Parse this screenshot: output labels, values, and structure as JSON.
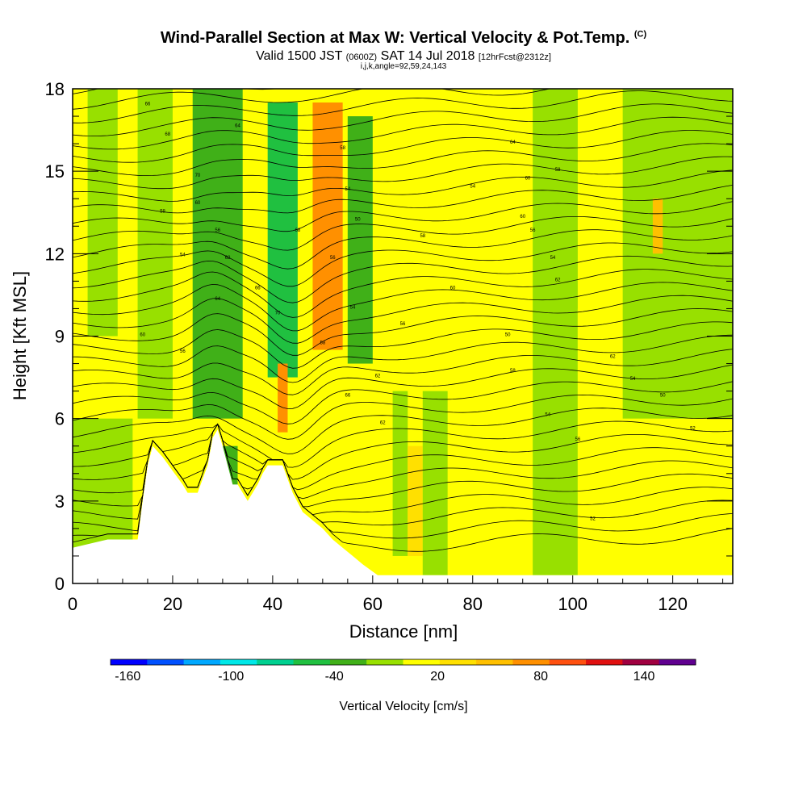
{
  "header": {
    "title": "Wind-Parallel Section at Max W: Vertical Velocity & Pot.Temp.",
    "title_mark": "(C)",
    "valid_main": "Valid 1500 JST",
    "valid_utc": "(0600Z)",
    "valid_date": "SAT 14 Jul 2018",
    "forecast": "[12hrFcst@2312z]",
    "grid_info": "i,j,k,angle=92,59,24,143"
  },
  "chart_data": {
    "type": "heatmap",
    "xlabel": "Distance [nm]",
    "ylabel": "Height [Kft MSL]",
    "xlim": [
      0,
      132
    ],
    "ylim": [
      0,
      18
    ],
    "x_ticks": [
      "0",
      "20",
      "40",
      "60",
      "80",
      "100",
      "120"
    ],
    "y_ticks": [
      "0",
      "3",
      "6",
      "9",
      "12",
      "15",
      "18"
    ],
    "colorbar": {
      "label": "Vertical Velocity [cm/s]",
      "tick_labels": [
        "-160",
        "-100",
        "-40",
        "20",
        "80",
        "140"
      ],
      "range": [
        -170,
        170
      ],
      "colors": [
        "#0000ff",
        "#0050ff",
        "#00a8ff",
        "#00e8e8",
        "#00d090",
        "#20c040",
        "#40b018",
        "#98e000",
        "#ffff00",
        "#ffe000",
        "#ffc000",
        "#ff9000",
        "#ff5010",
        "#e01010",
        "#a00040",
        "#600090"
      ]
    },
    "terrain_profile": [
      [
        0,
        1.3
      ],
      [
        7,
        1.6
      ],
      [
        13,
        1.6
      ],
      [
        13.5,
        2.3
      ],
      [
        14,
        3
      ],
      [
        15,
        4.3
      ],
      [
        16,
        5
      ],
      [
        18,
        4.6
      ],
      [
        20,
        4.1
      ],
      [
        22,
        3.6
      ],
      [
        23,
        3.3
      ],
      [
        25,
        3.3
      ],
      [
        27,
        4.3
      ],
      [
        28,
        5.3
      ],
      [
        29,
        5.6
      ],
      [
        30,
        5
      ],
      [
        31,
        4.3
      ],
      [
        32,
        3.6
      ],
      [
        33,
        3.6
      ],
      [
        35,
        3
      ],
      [
        36,
        3.3
      ],
      [
        37,
        3.6
      ],
      [
        38,
        4
      ],
      [
        39,
        4.3
      ],
      [
        42,
        4.3
      ],
      [
        44,
        3.3
      ],
      [
        46,
        2.6
      ],
      [
        48,
        2.3
      ],
      [
        50,
        2
      ],
      [
        52,
        1.6
      ],
      [
        54,
        1.3
      ],
      [
        56,
        1
      ],
      [
        58,
        0.7
      ],
      [
        61,
        0.3
      ],
      [
        62,
        0.3
      ],
      [
        132,
        0.3
      ]
    ],
    "velocity_zones": [
      {
        "x": [
          0,
          132
        ],
        "y": [
          0,
          18
        ],
        "value": 5
      },
      {
        "x": [
          0,
          12
        ],
        "y": [
          0.3,
          6
        ],
        "value": -15
      },
      {
        "x": [
          3,
          9
        ],
        "y": [
          9,
          18
        ],
        "value": -15
      },
      {
        "x": [
          13,
          20
        ],
        "y": [
          6,
          18
        ],
        "value": -15
      },
      {
        "x": [
          24,
          34
        ],
        "y": [
          6,
          18
        ],
        "value": -25
      },
      {
        "x": [
          39,
          45
        ],
        "y": [
          7.5,
          17.5
        ],
        "value": -45
      },
      {
        "x": [
          48,
          54
        ],
        "y": [
          8.5,
          17.5
        ],
        "value": 65
      },
      {
        "x": [
          55,
          60
        ],
        "y": [
          8,
          17
        ],
        "value": -35
      },
      {
        "x": [
          41,
          43
        ],
        "y": [
          5.5,
          8
        ],
        "value": 70
      },
      {
        "x": [
          30,
          33
        ],
        "y": [
          3.5,
          5
        ],
        "value": -40
      },
      {
        "x": [
          64,
          67
        ],
        "y": [
          1,
          7
        ],
        "value": -20
      },
      {
        "x": [
          67,
          70
        ],
        "y": [
          1,
          5
        ],
        "value": 40
      },
      {
        "x": [
          70,
          75
        ],
        "y": [
          0.3,
          7
        ],
        "value": -15
      },
      {
        "x": [
          75,
          92
        ],
        "y": [
          0.3,
          18
        ],
        "value": 15
      },
      {
        "x": [
          92,
          101
        ],
        "y": [
          0.3,
          18
        ],
        "value": -15
      },
      {
        "x": [
          101,
          110
        ],
        "y": [
          0.3,
          10
        ],
        "value": 15
      },
      {
        "x": [
          110,
          132
        ],
        "y": [
          6,
          18
        ],
        "value": -15
      },
      {
        "x": [
          116,
          118
        ],
        "y": [
          12,
          14
        ],
        "value": 50
      }
    ],
    "theta_labels": [
      "66",
      "70",
      "68",
      "64",
      "60",
      "56",
      "54",
      "58",
      "62",
      "66",
      "70",
      "68",
      "64",
      "60",
      "56",
      "58",
      "54",
      "50",
      "56",
      "54",
      "58",
      "62",
      "66",
      "62",
      "64",
      "60",
      "58",
      "60",
      "56",
      "54",
      "50",
      "58",
      "54",
      "56",
      "52",
      "62",
      "54",
      "58",
      "60",
      "56",
      "62",
      "50",
      "52",
      "54"
    ]
  }
}
